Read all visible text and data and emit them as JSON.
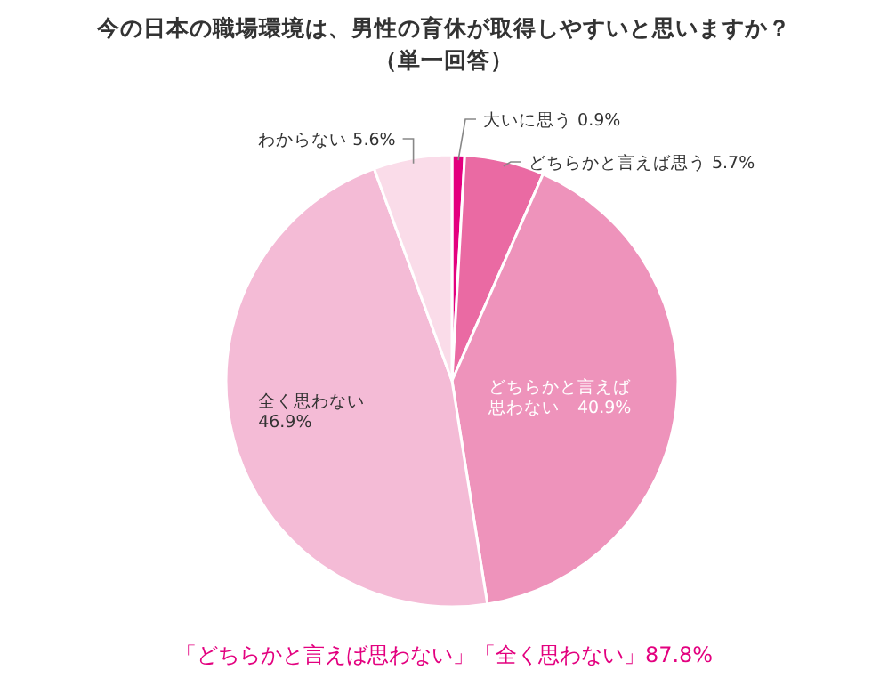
{
  "chart_data": {
    "type": "pie",
    "title": "今の日本の職場環境は、男性の育休が取得しやすいと思いますか？",
    "subtitle": "（単一回答）",
    "categories": [
      "大いに思う",
      "どちらかと言えば思う",
      "どちらかと言えば思わない",
      "全く思わない",
      "わからない"
    ],
    "values": [
      0.9,
      5.7,
      40.9,
      46.9,
      5.6
    ],
    "colors": [
      "#e3007f",
      "#ea6aa3",
      "#ee93bb",
      "#f4bbd6",
      "#fadce9"
    ],
    "value_labels": [
      "0.9%",
      "5.7%",
      "40.9%",
      "46.9%",
      "5.6%"
    ],
    "annotations": [
      "「どちらかと言えば思わない」「全く思わない」87.8%"
    ]
  }
}
